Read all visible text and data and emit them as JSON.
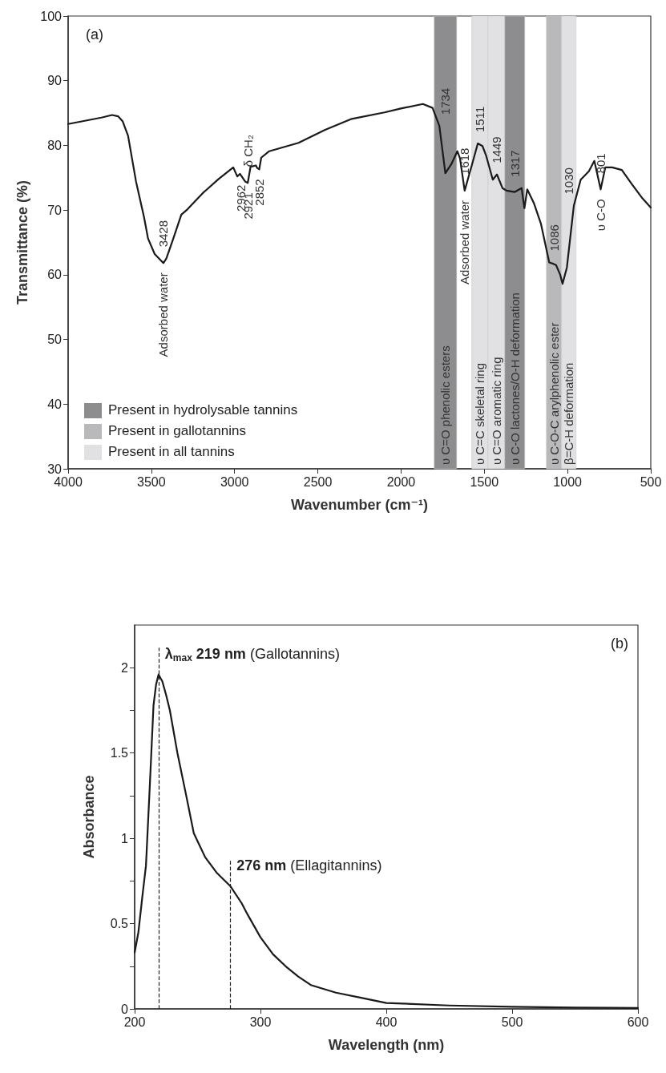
{
  "chart_data": [
    {
      "type": "line",
      "color": "#1a1a1a",
      "marker": "none",
      "line_style": "solid",
      "xlabel": "Wavenumber (cm⁻¹)",
      "ylabel": "Transmittance (%)",
      "xlim": [
        4000,
        500
      ],
      "xticks": [
        4000,
        3500,
        3000,
        2500,
        2000,
        1500,
        1000,
        500
      ],
      "ylim": [
        30,
        100
      ],
      "yticks": [
        30,
        40,
        50,
        60,
        70,
        80,
        90,
        100
      ],
      "x": [
        4000,
        3900,
        3800,
        3736,
        3700,
        3672,
        3640,
        3592,
        3544,
        3520,
        3480,
        3428,
        3410,
        3368,
        3320,
        3288,
        3192,
        3096,
        3008,
        2984,
        2968,
        2936,
        2921,
        2904,
        2872,
        2864,
        2852,
        2840,
        2792,
        2616,
        2456,
        2296,
        2099,
        2001,
        1869,
        1811,
        1770,
        1734,
        1696,
        1662,
        1646,
        1618,
        1572,
        1539,
        1511,
        1490,
        1449,
        1424,
        1391,
        1366,
        1317,
        1276,
        1259,
        1242,
        1201,
        1160,
        1110,
        1086,
        1069,
        1044,
        1030,
        1004,
        962,
        921,
        872,
        839,
        801,
        773,
        732,
        674,
        616,
        550,
        500
      ],
      "values": [
        83.3,
        83.8,
        84.3,
        84.7,
        84.5,
        83.7,
        81.5,
        74.4,
        68.9,
        65.6,
        63.2,
        61.8,
        62.5,
        65.6,
        69.3,
        70,
        72.6,
        74.8,
        76.6,
        75.2,
        75.6,
        74.4,
        74.2,
        76.7,
        76.9,
        76.5,
        76.3,
        78.1,
        79.1,
        80.4,
        82.4,
        84.1,
        85.1,
        85.7,
        86.4,
        85.8,
        83.0,
        75.7,
        77.2,
        79.1,
        78.0,
        73.0,
        77.2,
        80.3,
        79.9,
        78.5,
        74.7,
        75.5,
        73.4,
        73.0,
        72.8,
        73.4,
        70.3,
        73.2,
        71.0,
        67.9,
        61.9,
        61.7,
        61.5,
        60.0,
        58.6,
        61.1,
        70.7,
        74.7,
        76.0,
        77.6,
        73.2,
        76.6,
        76.6,
        76.2,
        74.1,
        71.8,
        70.4
      ],
      "bands": [
        {
          "axis": "x",
          "from": 1801,
          "to": 1666,
          "color": "#8d8d8f"
        },
        {
          "axis": "x",
          "from": 1575,
          "to": 1478,
          "color": "#e1e1e3"
        },
        {
          "axis": "x",
          "from": 1478,
          "to": 1377,
          "color": "#e1e1e3"
        },
        {
          "axis": "x",
          "from": 1377,
          "to": 1257,
          "color": "#8d8d8f"
        },
        {
          "axis": "x",
          "from": 1127,
          "to": 1036,
          "color": "#b9b9bb"
        },
        {
          "axis": "x",
          "from": 1036,
          "to": 949,
          "color": "#e1e1e3"
        }
      ],
      "annotations": [
        "(a)",
        "Present in hydrolysable tannins",
        "Present in gallotannins",
        "Present in all tannins",
        {
          "text": "3428",
          "x": 3428,
          "y": 61.8
        },
        {
          "text": "Adsorbed water",
          "x": 3428,
          "y": 61.8
        },
        {
          "text": "2962",
          "x": 2962,
          "y": 75.4
        },
        {
          "text": "δ CH₂",
          "x": 2921,
          "y": 74.2
        },
        {
          "text": "2921",
          "x": 2921,
          "y": 74.2
        },
        {
          "text": "2852",
          "x": 2852,
          "y": 76.3
        },
        "1734",
        "υ C=O phenolic esters",
        "1511",
        "υ C=C skeletal ring",
        "1449",
        "υ C=O aromatic ring",
        "1317",
        "υ C-O lactones/O-H deformation",
        "1086",
        "υ C-O-C arylphenolic ester",
        "1030",
        "β=C-H deformation",
        {
          "text": "1618",
          "x": 1618,
          "y": 73.0
        },
        {
          "text": "Adsorbed water",
          "x": 1618,
          "y": 73.0
        },
        {
          "text": "801",
          "x": 801,
          "y": 73.2
        },
        {
          "text": "υ C-O",
          "x": 801,
          "y": 73.2
        }
      ]
    },
    {
      "type": "line",
      "color": "#1a1a1a",
      "marker": "none",
      "line_style": "solid",
      "xlabel": "Wavelength (nm)",
      "ylabel": "Absorbance",
      "xlim": [
        200,
        600
      ],
      "xticks": [
        200,
        300,
        400,
        500,
        600
      ],
      "ylim": [
        0,
        2.25
      ],
      "yticks": [
        0,
        {
          "value": 0.25,
          "label": null
        },
        0.5,
        {
          "value": 0.75,
          "label": null
        },
        1,
        {
          "value": 1.25,
          "label": null
        },
        1.5,
        {
          "value": 1.75,
          "label": null
        },
        2
      ],
      "x": [
        200,
        203,
        206,
        209,
        212,
        215,
        217,
        219,
        222,
        225,
        228,
        234,
        241,
        247,
        256,
        265,
        276,
        285,
        290,
        300,
        310,
        320,
        330,
        340,
        360,
        380,
        400,
        450,
        500,
        550,
        600
      ],
      "values": [
        0.33,
        0.45,
        0.65,
        0.84,
        1.3,
        1.78,
        1.9,
        1.96,
        1.92,
        1.84,
        1.75,
        1.5,
        1.25,
        1.03,
        0.89,
        0.8,
        0.72,
        0.62,
        0.55,
        0.42,
        0.32,
        0.25,
        0.19,
        0.14,
        0.095,
        0.065,
        0.035,
        0.02,
        0.012,
        0.008,
        0.005
      ],
      "ref_lines": [
        {
          "axis": "x",
          "value": 219,
          "label": "λ$_{max}$ 219 nm (Gallotannins)",
          "line_style": "dashed"
        },
        {
          "axis": "x",
          "value": 276,
          "label": "276 nm (Ellagitannins)",
          "line_style": "dashed"
        }
      ],
      "annotations": [
        "(b)"
      ]
    }
  ]
}
